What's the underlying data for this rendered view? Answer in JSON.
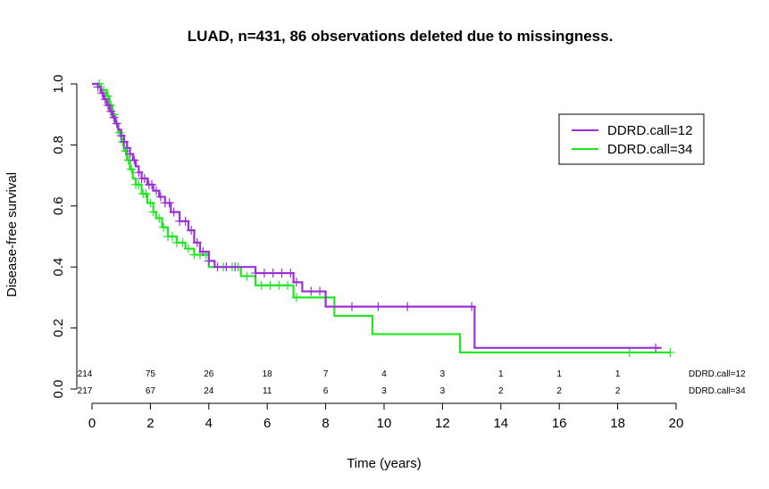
{
  "chart_data": {
    "type": "line",
    "subtype": "kaplan-meier",
    "title": "LUAD, n=431, 86 observations deleted due to missingness.",
    "xlabel": "Time (years)",
    "ylabel": "Disease-free survival",
    "xlim": [
      0,
      20
    ],
    "ylim": [
      0,
      1
    ],
    "x_ticks": [
      0,
      2,
      4,
      6,
      8,
      10,
      12,
      14,
      16,
      18,
      20
    ],
    "y_ticks": [
      0.0,
      0.2,
      0.4,
      0.6,
      0.8,
      1.0
    ],
    "x_tick_labels": [
      "0",
      "2",
      "4",
      "6",
      "8",
      "10",
      "12",
      "14",
      "16",
      "18",
      "20"
    ],
    "y_tick_labels": [
      "0.0",
      "0.2",
      "0.4",
      "0.6",
      "0.8",
      "1.0"
    ],
    "grid": false,
    "legend_position": "top-right",
    "series": [
      {
        "name": "DDRD.call=12",
        "color": "#9b30d9",
        "steps": [
          [
            0,
            1.0
          ],
          [
            0.2,
            0.99
          ],
          [
            0.3,
            0.97
          ],
          [
            0.4,
            0.95
          ],
          [
            0.5,
            0.93
          ],
          [
            0.6,
            0.91
          ],
          [
            0.7,
            0.89
          ],
          [
            0.8,
            0.87
          ],
          [
            0.9,
            0.85
          ],
          [
            1.0,
            0.83
          ],
          [
            1.1,
            0.81
          ],
          [
            1.2,
            0.79
          ],
          [
            1.3,
            0.77
          ],
          [
            1.4,
            0.75
          ],
          [
            1.5,
            0.73
          ],
          [
            1.6,
            0.71
          ],
          [
            1.7,
            0.69
          ],
          [
            1.9,
            0.67
          ],
          [
            2.1,
            0.65
          ],
          [
            2.3,
            0.63
          ],
          [
            2.5,
            0.61
          ],
          [
            2.7,
            0.58
          ],
          [
            3.0,
            0.55
          ],
          [
            3.3,
            0.52
          ],
          [
            3.5,
            0.48
          ],
          [
            3.7,
            0.45
          ],
          [
            4.0,
            0.42
          ],
          [
            4.2,
            0.4
          ],
          [
            5.6,
            0.38
          ],
          [
            6.9,
            0.35
          ],
          [
            7.2,
            0.32
          ],
          [
            8.0,
            0.27
          ],
          [
            13.1,
            0.135
          ],
          [
            19.5,
            0.135
          ]
        ],
        "censor_x": [
          0.2,
          0.35,
          0.45,
          0.55,
          0.65,
          0.75,
          0.85,
          1.0,
          1.1,
          1.2,
          1.3,
          1.45,
          1.6,
          1.7,
          1.8,
          1.95,
          2.05,
          2.2,
          2.35,
          2.5,
          2.65,
          2.8,
          3.0,
          3.2,
          3.4,
          3.6,
          3.8,
          4.0,
          4.3,
          4.6,
          4.9,
          5.6,
          5.9,
          6.2,
          6.5,
          6.8,
          7.0,
          7.5,
          7.8,
          8.9,
          9.8,
          10.8,
          13.0,
          19.3
        ],
        "at_risk": [
          "214",
          "75",
          "26",
          "18",
          "7",
          "4",
          "3",
          "1",
          "1",
          "1"
        ],
        "legend_label": "DDRD.call=12"
      },
      {
        "name": "DDRD.call=34",
        "color": "#1ee81e",
        "steps": [
          [
            0,
            1.0
          ],
          [
            0.3,
            0.98
          ],
          [
            0.5,
            0.96
          ],
          [
            0.6,
            0.93
          ],
          [
            0.7,
            0.9
          ],
          [
            0.8,
            0.87
          ],
          [
            0.9,
            0.84
          ],
          [
            1.0,
            0.81
          ],
          [
            1.1,
            0.78
          ],
          [
            1.2,
            0.75
          ],
          [
            1.3,
            0.72
          ],
          [
            1.4,
            0.69
          ],
          [
            1.5,
            0.67
          ],
          [
            1.7,
            0.64
          ],
          [
            1.9,
            0.61
          ],
          [
            2.1,
            0.58
          ],
          [
            2.2,
            0.56
          ],
          [
            2.4,
            0.53
          ],
          [
            2.6,
            0.5
          ],
          [
            2.9,
            0.48
          ],
          [
            3.2,
            0.46
          ],
          [
            3.5,
            0.44
          ],
          [
            4.0,
            0.4
          ],
          [
            5.1,
            0.37
          ],
          [
            5.6,
            0.34
          ],
          [
            6.9,
            0.3
          ],
          [
            8.3,
            0.24
          ],
          [
            9.6,
            0.18
          ],
          [
            12.6,
            0.12
          ],
          [
            19.8,
            0.12
          ]
        ],
        "censor_x": [
          0.25,
          0.4,
          0.55,
          0.65,
          0.75,
          0.85,
          0.95,
          1.05,
          1.15,
          1.25,
          1.35,
          1.5,
          1.6,
          1.75,
          1.85,
          2.0,
          2.1,
          2.3,
          2.45,
          2.6,
          2.75,
          2.9,
          3.1,
          3.3,
          3.5,
          3.7,
          3.9,
          4.5,
          4.8,
          5.0,
          5.3,
          5.8,
          6.1,
          6.4,
          6.7,
          7.0,
          18.4,
          19.8
        ],
        "at_risk": [
          "217",
          "67",
          "24",
          "11",
          "6",
          "3",
          "3",
          "2",
          "2",
          "2"
        ],
        "legend_label": "DDRD.call=34"
      }
    ],
    "at_risk_x": [
      0,
      2,
      4,
      6,
      8,
      10,
      12,
      14,
      16,
      18
    ],
    "at_risk_labels": [
      "DDRD.call=12",
      "DDRD.call=34"
    ]
  }
}
